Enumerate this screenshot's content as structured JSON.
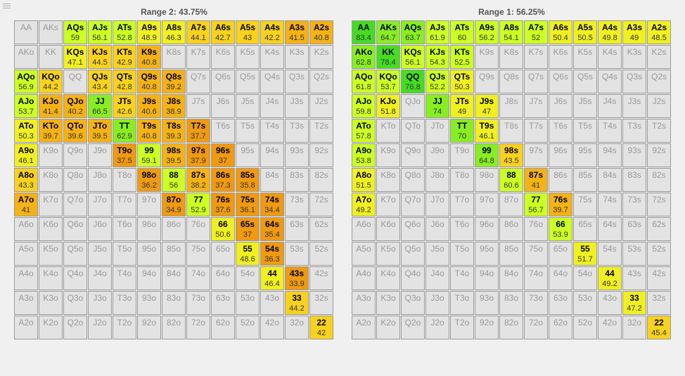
{
  "panels": [
    {
      "title": "Range 2: 43.75%",
      "selected": {
        "AQs": 59,
        "AJs": 56.1,
        "ATs": 52.8,
        "A9s": 48.9,
        "A8s": 46.3,
        "A7s": 44.1,
        "A6s": 42.7,
        "A5s": 43,
        "A4s": 42.2,
        "A3s": 41.5,
        "A2s": 40.8,
        "KQs": 47.1,
        "KJs": 44.5,
        "KTs": 42.9,
        "K9s": 40.8,
        "AQo": 56.9,
        "KQo": 44.2,
        "QJs": 43.4,
        "QTs": 42.8,
        "Q9s": 40.8,
        "Q8s": 39.2,
        "AJo": 53.7,
        "KJo": 41.4,
        "QJo": 40.2,
        "JJ": 66.5,
        "JTs": 42.6,
        "J9s": 40.6,
        "J8s": 38.9,
        "ATo": 50.3,
        "KTo": 39.7,
        "QTo": 39.6,
        "JTo": 39.5,
        "TT": 62.9,
        "T9s": 40.8,
        "T8s": 39.3,
        "T7s": 37.7,
        "A9o": 46.1,
        "T9o": 37.5,
        "99": 59.1,
        "98s": 39.5,
        "97s": 37.9,
        "96s": 37,
        "A8o": 43.3,
        "98o": 36.2,
        "88": 56,
        "87s": 38.2,
        "86s": 37.3,
        "85s": 35.8,
        "A7o": 41,
        "87o": 34.9,
        "77": 52.9,
        "76s": 37.6,
        "75s": 36.1,
        "74s": 34.4,
        "66": 50.6,
        "65s": 37,
        "64s": 35.4,
        "55": 48.6,
        "54s": 36.3,
        "44": 46.4,
        "43s": 33.9,
        "33": 44.2,
        "22": 42
      }
    },
    {
      "title": "Range 1: 56.25%",
      "selected": {
        "AA": 83.4,
        "AKs": 64.7,
        "AQs": 63.7,
        "AJs": 61.9,
        "ATs": 60,
        "A9s": 56.2,
        "A8s": 54.1,
        "A7s": 52,
        "A6s": 50.4,
        "A5s": 50.5,
        "A4s": 49.8,
        "A3s": 49,
        "A2s": 48.5,
        "AKo": 62.8,
        "KK": 78.4,
        "KQs": 56.1,
        "KJs": 54.3,
        "KTs": 52.5,
        "AQo": 61.8,
        "KQo": 53.7,
        "QQ": 76.8,
        "QJs": 52.2,
        "QTs": 50.3,
        "AJo": 59.8,
        "KJo": 51.8,
        "JJ": 74,
        "JTs": 49,
        "J9s": 47,
        "ATo": 57.8,
        "TT": 70,
        "T9s": 46.1,
        "A9o": 53.8,
        "99": 64.8,
        "98s": 43.5,
        "A8o": 51.5,
        "88": 60.6,
        "87s": 41,
        "A7o": 49.2,
        "77": 56.7,
        "76s": 39.7,
        "66": 53.9,
        "55": 51.7,
        "44": 49.2,
        "33": 47.2,
        "22": 45.4
      }
    }
  ],
  "ranks": [
    "A",
    "K",
    "Q",
    "J",
    "T",
    "9",
    "8",
    "7",
    "6",
    "5",
    "4",
    "3",
    "2"
  ],
  "colors": {
    "empty": "#e3e3e3",
    "scale": [
      {
        "min": 75,
        "color": "#44dd22"
      },
      {
        "min": 62,
        "color": "#88ee22"
      },
      {
        "min": 52,
        "color": "#ccff22"
      },
      {
        "min": 46,
        "color": "#f0f020"
      },
      {
        "min": 42,
        "color": "#f8d21c"
      },
      {
        "min": 38,
        "color": "#f5b214"
      },
      {
        "min": 0,
        "color": "#ef9a10"
      }
    ]
  }
}
